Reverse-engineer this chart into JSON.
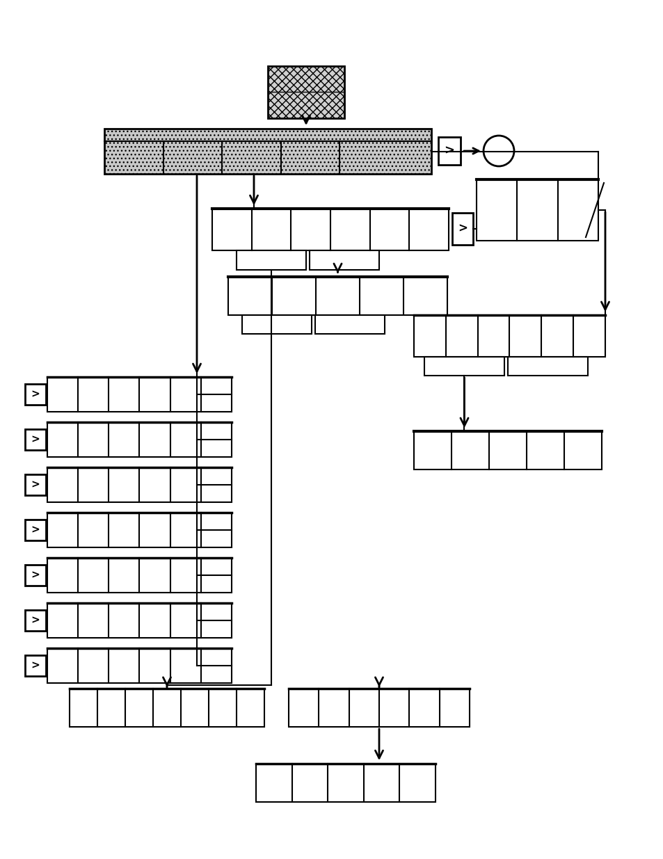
{
  "bg_color": "#ffffff",
  "fig_width": 9.54,
  "fig_height": 12.35,
  "dpi": 100
}
